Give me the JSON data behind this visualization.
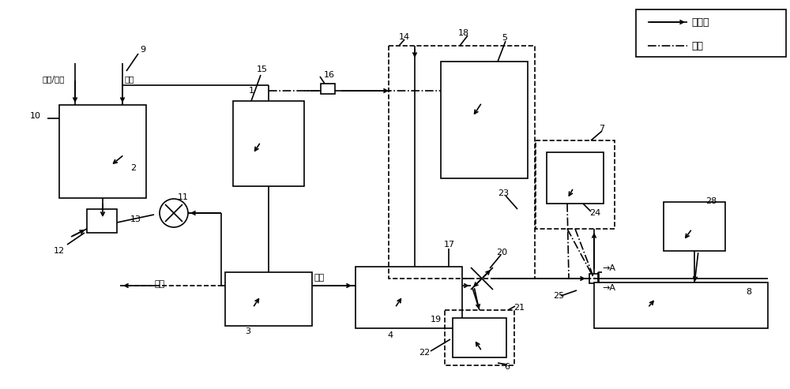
{
  "bg": "#ffffff",
  "lc": "#000000",
  "lw": 1.2,
  "legend_solid": "输气管",
  "legend_dash": "导线",
  "label_h2_air": "氢气/空气",
  "label_h2": "氢气",
  "label_drain": "排水",
  "label_exhaust": "排气"
}
